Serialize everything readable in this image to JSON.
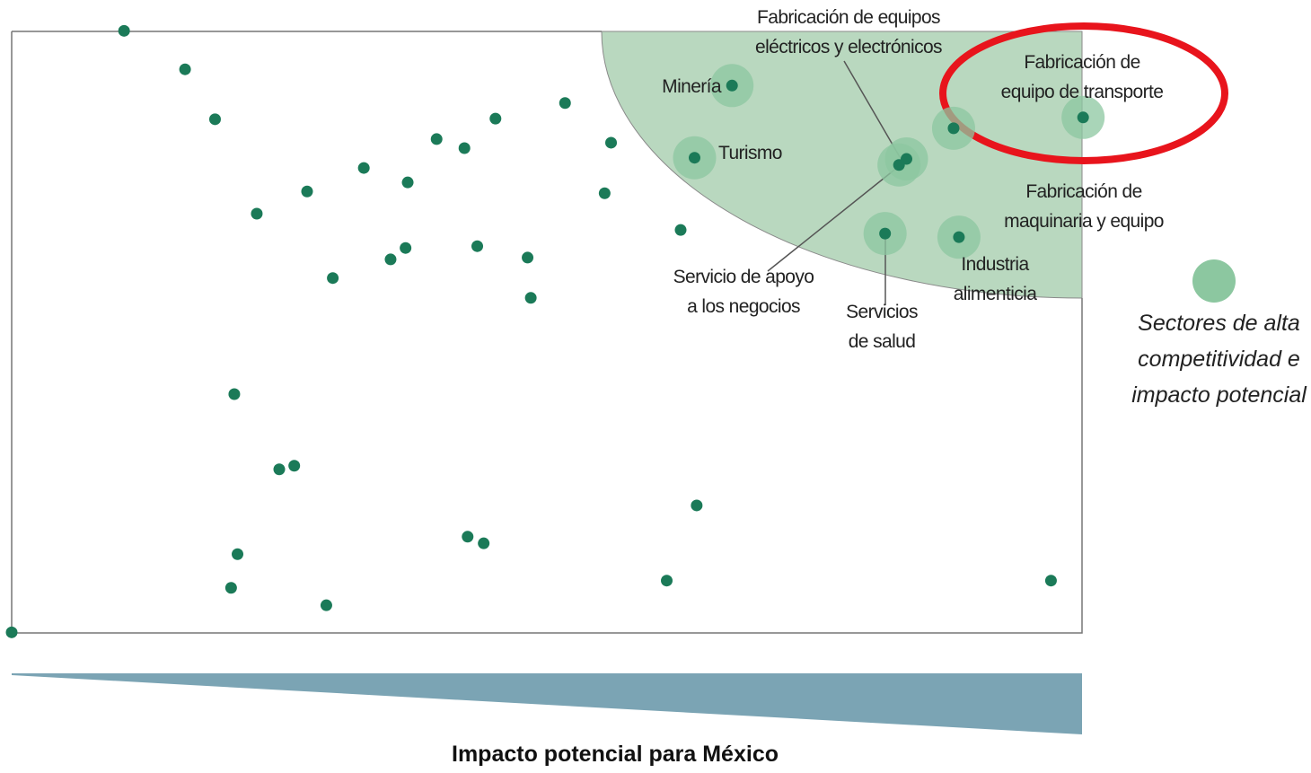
{
  "chart_data": {
    "type": "scatter",
    "xlabel": "Impacto potencial para México",
    "xlim": [
      0,
      100
    ],
    "ylim": [
      0,
      100
    ],
    "series": [
      {
        "color": "#1b7a58",
        "x": [
          10.5,
          16.2,
          19.0,
          22.9,
          27.6,
          30.0,
          32.9,
          37.0,
          35.4,
          36.8,
          39.7,
          42.3,
          45.2,
          43.5,
          48.2,
          48.5,
          51.7,
          56.0,
          55.4,
          62.5,
          20.8,
          25.0,
          26.4,
          64.0,
          21.1,
          20.5,
          29.4,
          42.6,
          44.1,
          61.2,
          97.1,
          0
        ],
        "values": [
          100.1,
          93.7,
          85.4,
          69.7,
          73.4,
          59.0,
          77.3,
          74.9,
          62.1,
          64.0,
          82.1,
          80.6,
          85.5,
          64.3,
          62.4,
          55.7,
          88.1,
          81.5,
          73.1,
          67.0,
          39.7,
          27.2,
          27.8,
          21.2,
          13.1,
          7.5,
          4.6,
          16.0,
          14.9,
          8.7,
          8.7,
          0.1
        ]
      },
      {
        "name": "Sectores de alta competitividad e impacto potencial",
        "color": "#1b7a58",
        "halo_color": "#8cc7a0",
        "labels": [
          "Minería",
          "Turismo",
          "Fabricación de equipos\neléctricos y electrónicos",
          "Servicio de apoyo\na los negocios",
          "Fabricación de\nequipo de transporte",
          "Fabricación de\nmaquinaria y equipo",
          "Servicios\nde salud",
          "Industria\nalimenticia"
        ],
        "x": [
          67.3,
          63.8,
          83.6,
          82.9,
          100.1,
          88.0,
          81.6,
          88.5
        ],
        "values": [
          91.0,
          79.0,
          78.8,
          77.8,
          85.7,
          83.9,
          66.4,
          65.8
        ]
      }
    ]
  }
}
